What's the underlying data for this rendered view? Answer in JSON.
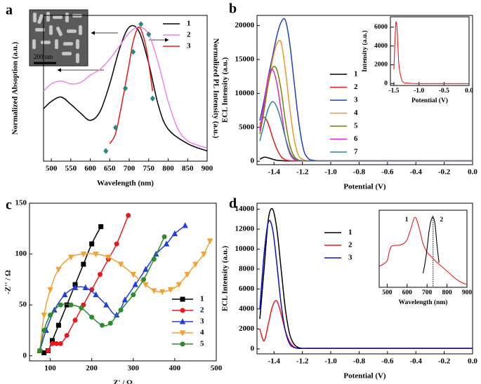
{
  "chart_data": [
    {
      "type": "line",
      "panel_label": "a",
      "xlabel": "Wavelength (nm)",
      "ylabel": "Normalized Absoption (a.u.)",
      "y2label": "Normalized PL Intensity (a.u.)",
      "scale_bar_label": "200 nm",
      "xlim": [
        480,
        900
      ],
      "xticks": [
        500,
        550,
        600,
        650,
        700,
        750,
        800,
        850,
        900
      ],
      "ylim": [
        0,
        1
      ],
      "legend": "upper right",
      "series": [
        {
          "name": "1",
          "color": "#000000",
          "x": [
            480,
            500,
            525,
            550,
            575,
            600,
            625,
            650,
            675,
            700,
            725,
            750,
            775,
            800,
            850,
            900
          ],
          "values": [
            0.36,
            0.41,
            0.44,
            0.39,
            0.33,
            0.28,
            0.34,
            0.53,
            0.77,
            0.92,
            0.89,
            0.67,
            0.38,
            0.22,
            0.12,
            0.07
          ]
        },
        {
          "name": "2",
          "color": "#ee82ee",
          "x": [
            480,
            500,
            525,
            550,
            575,
            600,
            625,
            650,
            675,
            700,
            725,
            750,
            775,
            800,
            825,
            850,
            875,
            900
          ],
          "values": [
            0.48,
            0.53,
            0.55,
            0.53,
            0.54,
            0.59,
            0.63,
            0.7,
            0.79,
            0.88,
            0.92,
            0.87,
            0.67,
            0.41,
            0.22,
            0.14,
            0.11,
            0.09
          ]
        },
        {
          "name": "3",
          "color": "#e8191c",
          "x": [
            650,
            665,
            680,
            700,
            710,
            725,
            740,
            750,
            760
          ],
          "values": [
            0.12,
            0.19,
            0.38,
            0.67,
            0.82,
            0.92,
            0.82,
            0.67,
            0.48
          ]
        },
        {
          "color": "#2a8a7a",
          "marker": "diamond",
          "line": false,
          "x": [
            640,
            665,
            690,
            710,
            730,
            750,
            760
          ],
          "values": [
            0.07,
            0.23,
            0.5,
            0.75,
            0.94,
            0.87,
            0.43
          ]
        }
      ]
    },
    {
      "type": "line",
      "panel_label": "b",
      "xlabel": "Potential (V)",
      "ylabel": "ECL Intensity (a.u.)",
      "xlim": [
        -1.52,
        0
      ],
      "xticks": [
        -1.4,
        -1.2,
        {
          "value": -1,
          "label": "-1.0"
        },
        -0.8,
        -0.6,
        -0.4,
        -0.2,
        {
          "value": 0,
          "label": "0.0"
        }
      ],
      "ylim": [
        -500,
        21500
      ],
      "yticks": [
        0,
        5000,
        10000,
        15000,
        20000
      ],
      "legend": "center right",
      "x": [
        -1.5,
        -1.47,
        -1.44,
        -1.41,
        -1.38,
        -1.35,
        -1.32,
        -1.29,
        -1.26,
        -1.23,
        -1.2,
        -1.17,
        -1.1,
        -0.8,
        0
      ],
      "series": [
        {
          "name": "1",
          "color": "#000000",
          "values": [
            300,
            600,
            500,
            300,
            150,
            100,
            50,
            50,
            50,
            50,
            50,
            50,
            50,
            50,
            50
          ]
        },
        {
          "name": "2",
          "color": "#e8191c",
          "values": [
            5500,
            6500,
            5500,
            3500,
            1800,
            700,
            200,
            100,
            50,
            50,
            50,
            50,
            50,
            50,
            50
          ]
        },
        {
          "name": "3",
          "color": "#1f3fbf",
          "values": [
            6000,
            9000,
            12500,
            15500,
            18500,
            20500,
            20800,
            17500,
            12000,
            6500,
            2500,
            700,
            100,
            50,
            50
          ]
        },
        {
          "name": "4",
          "color": "#f0922b",
          "values": [
            5000,
            8000,
            11500,
            15000,
            17300,
            17500,
            13500,
            8000,
            3500,
            1000,
            300,
            100,
            50,
            50,
            50
          ]
        },
        {
          "name": "5",
          "color": "#7d7d00",
          "values": [
            4000,
            7500,
            11500,
            13800,
            13500,
            10500,
            6000,
            2500,
            800,
            200,
            100,
            50,
            50,
            50,
            50
          ]
        },
        {
          "name": "6",
          "color": "#e020d0",
          "values": [
            4500,
            8500,
            12500,
            13500,
            11500,
            7500,
            3500,
            1200,
            300,
            100,
            50,
            50,
            50,
            50,
            50
          ]
        },
        {
          "name": "7",
          "color": "#2a8a8a",
          "values": [
            3000,
            5500,
            7800,
            8800,
            8000,
            6000,
            3500,
            1500,
            500,
            150,
            100,
            50,
            50,
            50,
            50
          ]
        }
      ]
    },
    {
      "type": "line",
      "xlabel": "Potential (V)",
      "ylabel": "Intensity (a.u.)",
      "xlim": [
        -1.57,
        0
      ],
      "xticks": [
        -1.5,
        {
          "value": -1,
          "label": "-1.0"
        },
        -0.5,
        {
          "value": 0,
          "label": "0.0"
        }
      ],
      "ylim": [
        -200,
        7100
      ],
      "yticks": [
        0,
        2000,
        4000,
        6000
      ],
      "series": [
        {
          "color": "#e8191c",
          "x": [
            -1.5,
            -1.48,
            -1.46,
            -1.44,
            -1.42,
            -1.4,
            -1.35,
            -1.3,
            -1.2,
            -1,
            0
          ],
          "values": [
            1500,
            4500,
            6500,
            6000,
            4000,
            2000,
            500,
            100,
            50,
            0,
            0
          ]
        }
      ]
    },
    {
      "type": "line",
      "panel_label": "c",
      "xlabel": "Z' / Ω",
      "ylabel": "-Z'' / Ω",
      "xlim": [
        50,
        500
      ],
      "xticks": [
        100,
        200,
        300,
        400,
        500
      ],
      "ylim": [
        -5,
        150
      ],
      "yticks": [
        0,
        50,
        100,
        150
      ],
      "legend": "lower right",
      "series": [
        {
          "name": "1",
          "color": "#000000",
          "marker": "square",
          "x": [
            75,
            85,
            95,
            105,
            120,
            140,
            160,
            180,
            200,
            222
          ],
          "values": [
            5,
            3,
            5,
            15,
            30,
            50,
            70,
            90,
            110,
            127
          ]
        },
        {
          "name": "2",
          "color": "#e8191c",
          "marker": "circle",
          "x": [
            95,
            105,
            115,
            125,
            140,
            160,
            180,
            200,
            220,
            240,
            260,
            288
          ],
          "values": [
            5,
            12,
            12,
            12,
            20,
            35,
            50,
            65,
            80,
            95,
            110,
            138
          ]
        },
        {
          "name": "3",
          "color": "#1f3fe0",
          "marker": "triangle-up",
          "x": [
            75,
            90,
            110,
            135,
            160,
            185,
            210,
            235,
            260,
            280,
            305,
            330,
            355,
            380,
            400,
            425
          ],
          "values": [
            5,
            25,
            45,
            60,
            67,
            67,
            60,
            50,
            40,
            55,
            70,
            85,
            100,
            110,
            120,
            128
          ]
        },
        {
          "name": "4",
          "color": "#f5a030",
          "marker": "triangle-down",
          "x": [
            75,
            85,
            100,
            120,
            150,
            180,
            210,
            240,
            270,
            300,
            330,
            350,
            370,
            390,
            410,
            430,
            450,
            470,
            485
          ],
          "values": [
            5,
            40,
            65,
            85,
            97,
            100,
            100,
            97,
            90,
            80,
            70,
            64,
            63,
            65,
            70,
            80,
            90,
            100,
            113
          ]
        },
        {
          "name": "5",
          "color": "#2e8b2e",
          "marker": "circle",
          "x": [
            75,
            85,
            100,
            125,
            150,
            175,
            200,
            225,
            245,
            270,
            300,
            325,
            350,
            375
          ],
          "values": [
            5,
            25,
            40,
            50,
            50,
            47,
            38,
            30,
            32,
            45,
            60,
            75,
            95,
            117
          ]
        }
      ]
    },
    {
      "type": "line",
      "panel_label": "d",
      "xlabel": "Potential (V)",
      "ylabel": "ECL Intensity (a.u.)",
      "xlim": [
        -1.52,
        0
      ],
      "xticks": [
        -1.4,
        -1.2,
        {
          "value": -1,
          "label": "-1.0"
        },
        -0.8,
        -0.6,
        -0.4,
        -0.2,
        {
          "value": 0,
          "label": "0.0"
        }
      ],
      "ylim": [
        -500,
        14600
      ],
      "yticks": [
        0,
        2000,
        4000,
        6000,
        8000,
        10000,
        12000,
        14000
      ],
      "legend": "upper center",
      "x": [
        -1.5,
        -1.47,
        -1.44,
        -1.41,
        -1.38,
        -1.35,
        -1.32,
        -1.29,
        -1.26,
        -1.23,
        -1.2,
        -1.17,
        -1.1,
        -0.8,
        0
      ],
      "series": [
        {
          "name": "1",
          "color": "#000000",
          "values": [
            3000,
            8000,
            13000,
            14000,
            12000,
            8000,
            4000,
            1500,
            500,
            150,
            50,
            50,
            50,
            50,
            50
          ]
        },
        {
          "name": "2",
          "color": "#e8191c",
          "values": [
            2000,
            800,
            2500,
            4300,
            4800,
            3500,
            1800,
            700,
            200,
            50,
            50,
            50,
            50,
            50,
            50
          ]
        },
        {
          "name": "3",
          "color": "#1010c0",
          "values": [
            4000,
            9500,
            12700,
            12000,
            8500,
            4500,
            1800,
            500,
            150,
            50,
            50,
            50,
            50,
            50,
            50
          ]
        }
      ]
    },
    {
      "type": "line",
      "xlabel": "Wavelength (nm)",
      "xlim": [
        460,
        900
      ],
      "xticks": [
        500,
        600,
        700,
        800,
        900
      ],
      "ylim": [
        0,
        1.1
      ],
      "vline": 730,
      "series": [
        {
          "name": "1",
          "color": "#e8191c",
          "x": [
            460,
            480,
            500,
            510,
            520,
            540,
            560,
            580,
            600,
            620,
            640,
            660,
            680,
            700,
            720,
            740,
            760,
            780,
            800,
            820,
            840,
            860,
            880,
            900
          ],
          "values": [
            0.3,
            0.33,
            0.38,
            0.5,
            0.58,
            0.6,
            0.6,
            0.62,
            0.68,
            0.85,
            1.0,
            0.85,
            0.62,
            0.5,
            0.44,
            0.38,
            0.33,
            0.28,
            0.23,
            0.18,
            0.13,
            0.09,
            0.06,
            0.04
          ]
        },
        {
          "name": "2",
          "color": "#000000",
          "x": [
            680,
            690,
            700,
            710,
            720,
            730,
            740,
            750,
            760
          ],
          "values": [
            0.2,
            0.35,
            0.55,
            0.8,
            0.95,
            1.0,
            0.9,
            0.6,
            0.35
          ]
        }
      ]
    }
  ]
}
